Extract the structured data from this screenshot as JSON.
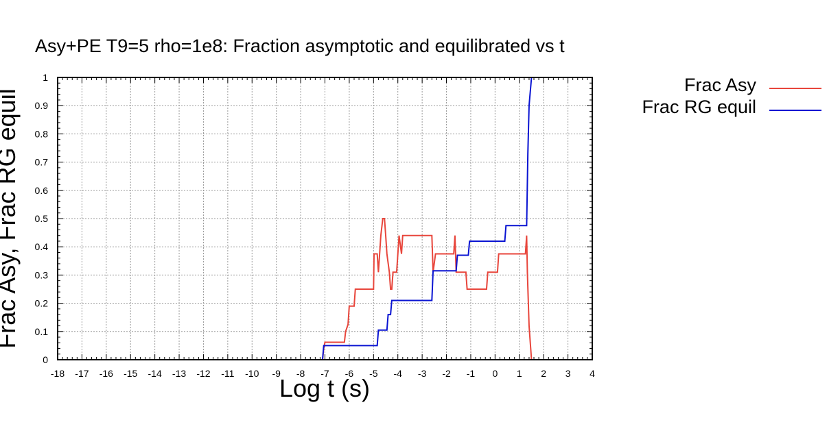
{
  "chart_data": {
    "type": "line",
    "title": "Asy+PE T9=5 rho=1e8: Fraction asymptotic and equilibrated vs t",
    "xlabel": "Log t (s)",
    "ylabel": "Frac Asy, Frac RG equil",
    "xlim": [
      -18,
      4
    ],
    "ylim": [
      0,
      1
    ],
    "x_ticks": [
      "-18",
      "-17",
      "-16",
      "-15",
      "-14",
      "-13",
      "-12",
      "-11",
      "-10",
      "-9",
      "-8",
      "-7",
      "-6",
      "-5",
      "-4",
      "-3",
      "-2",
      "-1",
      "0",
      "1",
      "2",
      "3",
      "4"
    ],
    "y_ticks": [
      "0",
      "0.1",
      "0.2",
      "0.3",
      "0.4",
      "0.5",
      "0.6",
      "0.7",
      "0.8",
      "0.9",
      "1"
    ],
    "grid": true,
    "legend_position": "outside-right-top",
    "series": [
      {
        "name": "Frac Asy",
        "color": "#e8463c",
        "points": [
          [
            -7.1,
            0
          ],
          [
            -7.05,
            0.04
          ],
          [
            -7.0,
            0.062
          ],
          [
            -6.2,
            0.062
          ],
          [
            -6.15,
            0.1
          ],
          [
            -6.05,
            0.125
          ],
          [
            -6.0,
            0.19
          ],
          [
            -5.8,
            0.19
          ],
          [
            -5.75,
            0.25
          ],
          [
            -5.2,
            0.25
          ],
          [
            -5.0,
            0.25
          ],
          [
            -4.98,
            0.375
          ],
          [
            -4.85,
            0.375
          ],
          [
            -4.8,
            0.31
          ],
          [
            -4.75,
            0.375
          ],
          [
            -4.7,
            0.44
          ],
          [
            -4.62,
            0.5
          ],
          [
            -4.55,
            0.5
          ],
          [
            -4.5,
            0.44
          ],
          [
            -4.45,
            0.375
          ],
          [
            -4.35,
            0.31
          ],
          [
            -4.3,
            0.25
          ],
          [
            -4.25,
            0.25
          ],
          [
            -4.2,
            0.31
          ],
          [
            -4.05,
            0.31
          ],
          [
            -4.0,
            0.375
          ],
          [
            -3.95,
            0.44
          ],
          [
            -3.85,
            0.375
          ],
          [
            -3.8,
            0.44
          ],
          [
            -3.7,
            0.44
          ],
          [
            -2.6,
            0.44
          ],
          [
            -2.55,
            0.31
          ],
          [
            -2.45,
            0.375
          ],
          [
            -1.7,
            0.375
          ],
          [
            -1.65,
            0.44
          ],
          [
            -1.6,
            0.31
          ],
          [
            -1.2,
            0.31
          ],
          [
            -1.15,
            0.25
          ],
          [
            -0.35,
            0.25
          ],
          [
            -0.3,
            0.31
          ],
          [
            0.1,
            0.31
          ],
          [
            0.15,
            0.375
          ],
          [
            1.25,
            0.375
          ],
          [
            1.3,
            0.44
          ],
          [
            1.33,
            0.31
          ],
          [
            1.4,
            0.12
          ],
          [
            1.5,
            0
          ]
        ]
      },
      {
        "name": "Frac RG equil",
        "color": "#0a14d2",
        "points": [
          [
            -7.1,
            0
          ],
          [
            -7.05,
            0.05
          ],
          [
            -4.85,
            0.05
          ],
          [
            -4.8,
            0.105
          ],
          [
            -4.45,
            0.105
          ],
          [
            -4.4,
            0.16
          ],
          [
            -4.3,
            0.16
          ],
          [
            -4.25,
            0.21
          ],
          [
            -2.6,
            0.21
          ],
          [
            -2.55,
            0.315
          ],
          [
            -1.6,
            0.315
          ],
          [
            -1.55,
            0.37
          ],
          [
            -1.1,
            0.37
          ],
          [
            -1.05,
            0.42
          ],
          [
            0.4,
            0.42
          ],
          [
            0.45,
            0.475
          ],
          [
            1.3,
            0.475
          ],
          [
            1.35,
            0.73
          ],
          [
            1.4,
            0.9
          ],
          [
            1.5,
            1.0
          ]
        ]
      }
    ]
  }
}
